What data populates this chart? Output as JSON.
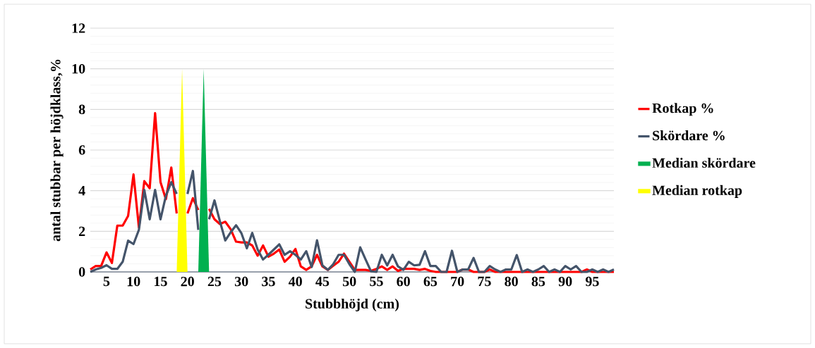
{
  "chart_data": {
    "type": "line",
    "xlabel": "Stubbhöjd (cm)",
    "ylabel": "antal stubbar per höjdklass,%",
    "x": [
      2,
      3,
      4,
      5,
      6,
      7,
      8,
      9,
      10,
      11,
      12,
      13,
      14,
      15,
      16,
      17,
      18,
      19,
      20,
      21,
      22,
      23,
      24,
      25,
      26,
      27,
      28,
      29,
      30,
      31,
      32,
      33,
      34,
      35,
      36,
      37,
      38,
      39,
      40,
      41,
      42,
      43,
      44,
      45,
      46,
      47,
      48,
      49,
      50,
      51,
      52,
      53,
      54,
      55,
      56,
      57,
      58,
      59,
      60,
      61,
      62,
      63,
      64,
      65,
      66,
      67,
      68,
      69,
      70,
      71,
      72,
      73,
      74,
      75,
      76,
      77,
      78,
      79,
      80,
      81,
      82,
      83,
      84,
      85,
      86,
      87,
      88,
      89,
      90,
      91,
      92,
      93,
      94,
      95,
      96,
      97,
      98,
      99
    ],
    "series": [
      {
        "name": "Rotkap %",
        "color": "#ff0000",
        "values": [
          0.12,
          0.29,
          0.29,
          0.96,
          0.44,
          2.28,
          2.28,
          2.76,
          4.8,
          2.18,
          4.47,
          4.12,
          7.82,
          4.42,
          3.58,
          5.14,
          2.88,
          null,
          2.88,
          3.63,
          3.05,
          null,
          3.1,
          2.59,
          2.36,
          2.47,
          2.1,
          1.49,
          1.45,
          1.45,
          1.3,
          0.8,
          1.3,
          0.75,
          0.9,
          1.1,
          0.5,
          0.75,
          1.13,
          0.27,
          0.1,
          0.27,
          0.84,
          0.27,
          0.1,
          0.3,
          0.5,
          0.9,
          0.5,
          0.1,
          0.1,
          0.1,
          0.05,
          0.15,
          0.27,
          0.1,
          0.27,
          0.05,
          0.15,
          0.15,
          0.15,
          0.1,
          0.15,
          0.05,
          0,
          0,
          0,
          0,
          0,
          0.12,
          0.12,
          0,
          0,
          0,
          0.12,
          0,
          0,
          0,
          0,
          0,
          0,
          0,
          0,
          0,
          0,
          0,
          0,
          0,
          0,
          0,
          0,
          0,
          0.12,
          0,
          0,
          0,
          0,
          0
        ]
      },
      {
        "name": "Skördare %",
        "color": "#44546a",
        "values": [
          0,
          0.12,
          0.2,
          0.33,
          0.15,
          0.15,
          0.5,
          1.54,
          1.37,
          2.07,
          4.04,
          2.59,
          4.04,
          2.59,
          3.75,
          4.42,
          3.84,
          null,
          3.84,
          4.97,
          2.07,
          null,
          2.59,
          3.52,
          2.5,
          1.55,
          1.95,
          2.3,
          1.9,
          1.16,
          1.92,
          1.1,
          0.61,
          0.85,
          1.1,
          1.36,
          0.84,
          1.02,
          0.84,
          0.61,
          1.02,
          0.24,
          1.56,
          0.32,
          0.1,
          0.38,
          0.84,
          0.84,
          0.38,
          0,
          1.21,
          0.61,
          0.03,
          0,
          0.84,
          0.32,
          0.84,
          0.27,
          0.1,
          0.5,
          0.32,
          0.35,
          1.02,
          0.29,
          0.29,
          0,
          0,
          1.04,
          0,
          0.12,
          0.12,
          0.69,
          0,
          0,
          0.29,
          0.12,
          0,
          0.12,
          0.12,
          0.83,
          0,
          0.12,
          0,
          0.12,
          0.29,
          0,
          0.12,
          0,
          0.29,
          0.12,
          0.29,
          0,
          0,
          0.12,
          0,
          0.12,
          0,
          0.12
        ]
      },
      {
        "name": "Median skördare",
        "type": "area",
        "color": "#00b050",
        "x": [
          22,
          23,
          24
        ],
        "values": [
          0,
          10,
          0
        ]
      },
      {
        "name": "Median rotkap",
        "type": "area",
        "color": "#ffff00",
        "x": [
          18,
          19,
          20
        ],
        "values": [
          0,
          10,
          0
        ]
      }
    ],
    "xlim": [
      2,
      99
    ],
    "xticks": [
      5,
      10,
      15,
      20,
      25,
      30,
      35,
      40,
      45,
      50,
      55,
      60,
      65,
      70,
      75,
      80,
      85,
      90,
      95
    ],
    "ylim": [
      0,
      12
    ],
    "yticks": [
      0,
      2,
      4,
      6,
      8,
      10,
      12
    ],
    "grid": "y",
    "legend": "right"
  }
}
